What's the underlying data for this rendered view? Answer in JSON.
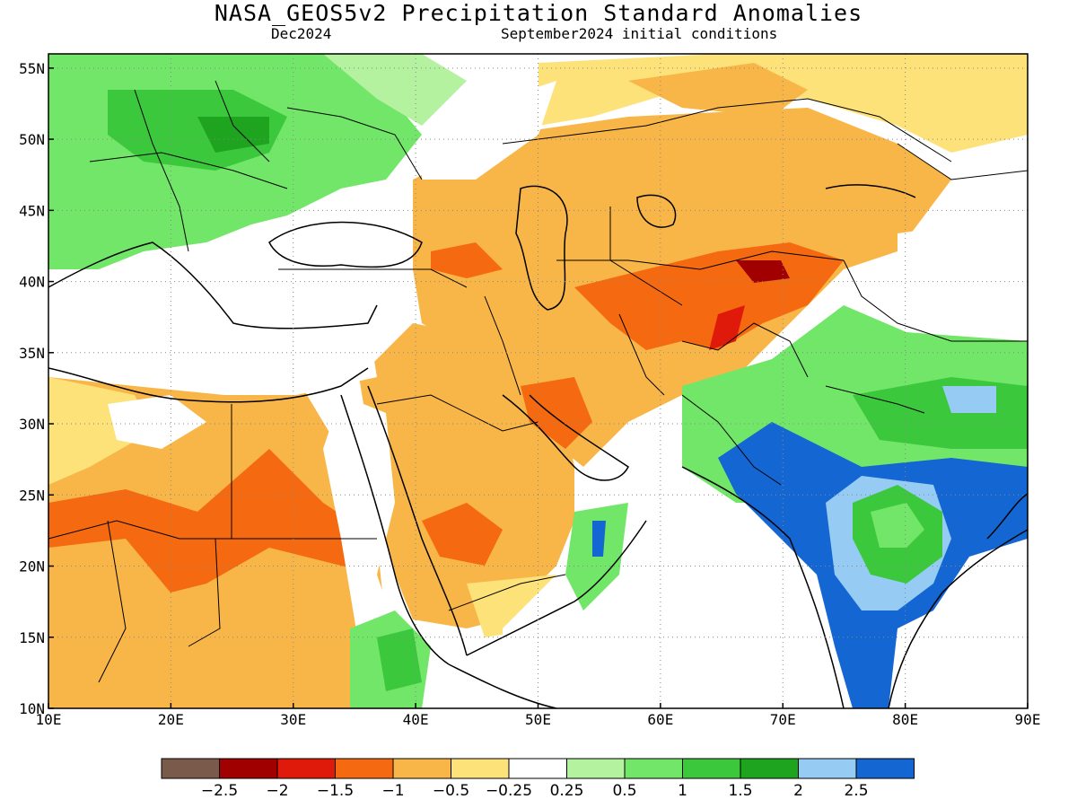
{
  "title": "NASA_GEOS5v2 Precipitation Standard Anomalies",
  "run_date": "Dec2024",
  "initial_conditions": "September2024 initial conditions",
  "map": {
    "lon_range": [
      10,
      90
    ],
    "lat_range": [
      10,
      56
    ],
    "lon_ticks": [
      "10E",
      "20E",
      "30E",
      "40E",
      "50E",
      "60E",
      "70E",
      "80E",
      "90E"
    ],
    "lat_ticks": [
      "10N",
      "15N",
      "20N",
      "25N",
      "30N",
      "35N",
      "40N",
      "45N",
      "50N",
      "55N"
    ],
    "gridlines": "dotted",
    "region": "Europe, North Africa, Middle East, Central and South Asia"
  },
  "colorbar": {
    "labels": [
      "−2.5",
      "−2",
      "−1.5",
      "−1",
      "−0.5",
      "−0.25",
      "0.25",
      "0.5",
      "1",
      "1.5",
      "2",
      "2.5"
    ],
    "colors": [
      "#7a5a4a",
      "#a00000",
      "#e01a0a",
      "#f56a10",
      "#f8b648",
      "#fde27a",
      "#ffffff",
      "#b4f2a0",
      "#72e668",
      "#3cc83c",
      "#1fa41f",
      "#96ccf4",
      "#1466d2"
    ]
  }
}
